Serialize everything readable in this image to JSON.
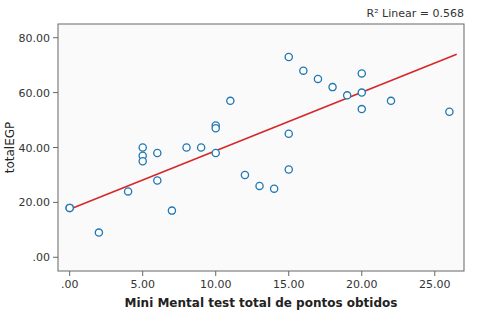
{
  "chart_data": {
    "type": "scatter",
    "xlabel": "Mini Mental test total de pontos obtidos",
    "ylabel": "totalEGP",
    "annotation": "R² Linear = 0.568",
    "series": [
      {
        "type": "scatter",
        "x": [
          0.0,
          0.0,
          2.0,
          4.0,
          5.0,
          5.0,
          5.0,
          6.0,
          6.0,
          7.0,
          8.0,
          9.0,
          10.0,
          10.0,
          10.0,
          11.0,
          12.0,
          13.0,
          14.0,
          15.0,
          15.0,
          15.0,
          16.0,
          17.0,
          18.0,
          19.0,
          20.0,
          20.0,
          20.0,
          22.0,
          26.0
        ],
        "values": [
          18.0,
          18.0,
          9.0,
          24.0,
          37.0,
          35.0,
          40.0,
          38.0,
          28.0,
          17.0,
          40.0,
          40.0,
          48.0,
          47.0,
          38.0,
          57.0,
          30.0,
          26.0,
          25.0,
          73.0,
          45.0,
          32.0,
          68.0,
          65.0,
          62.0,
          59.0,
          67.0,
          60.0,
          54.0,
          57.0,
          53.0
        ]
      },
      {
        "type": "line",
        "x": [
          0.0,
          26.5
        ],
        "values": [
          17.5,
          74.0
        ]
      }
    ],
    "xlim": [
      -0.8,
      27.0
    ],
    "ylim": [
      -5.0,
      85.0
    ],
    "xticks": [
      {
        "value": 0.0,
        "label": ".00"
      },
      {
        "value": 5.0,
        "label": "5.00"
      },
      {
        "value": 10.0,
        "label": "10.00"
      },
      {
        "value": 15.0,
        "label": "15.00"
      },
      {
        "value": 20.0,
        "label": "20.00"
      },
      {
        "value": 25.0,
        "label": "25.00"
      }
    ],
    "yticks": [
      {
        "value": 0.0,
        "label": ".00"
      },
      {
        "value": 20.0,
        "label": "20.00"
      },
      {
        "value": 40.0,
        "label": "40.00"
      },
      {
        "value": 60.0,
        "label": "60.00"
      },
      {
        "value": 80.0,
        "label": "80.00"
      }
    ],
    "grid": false
  }
}
